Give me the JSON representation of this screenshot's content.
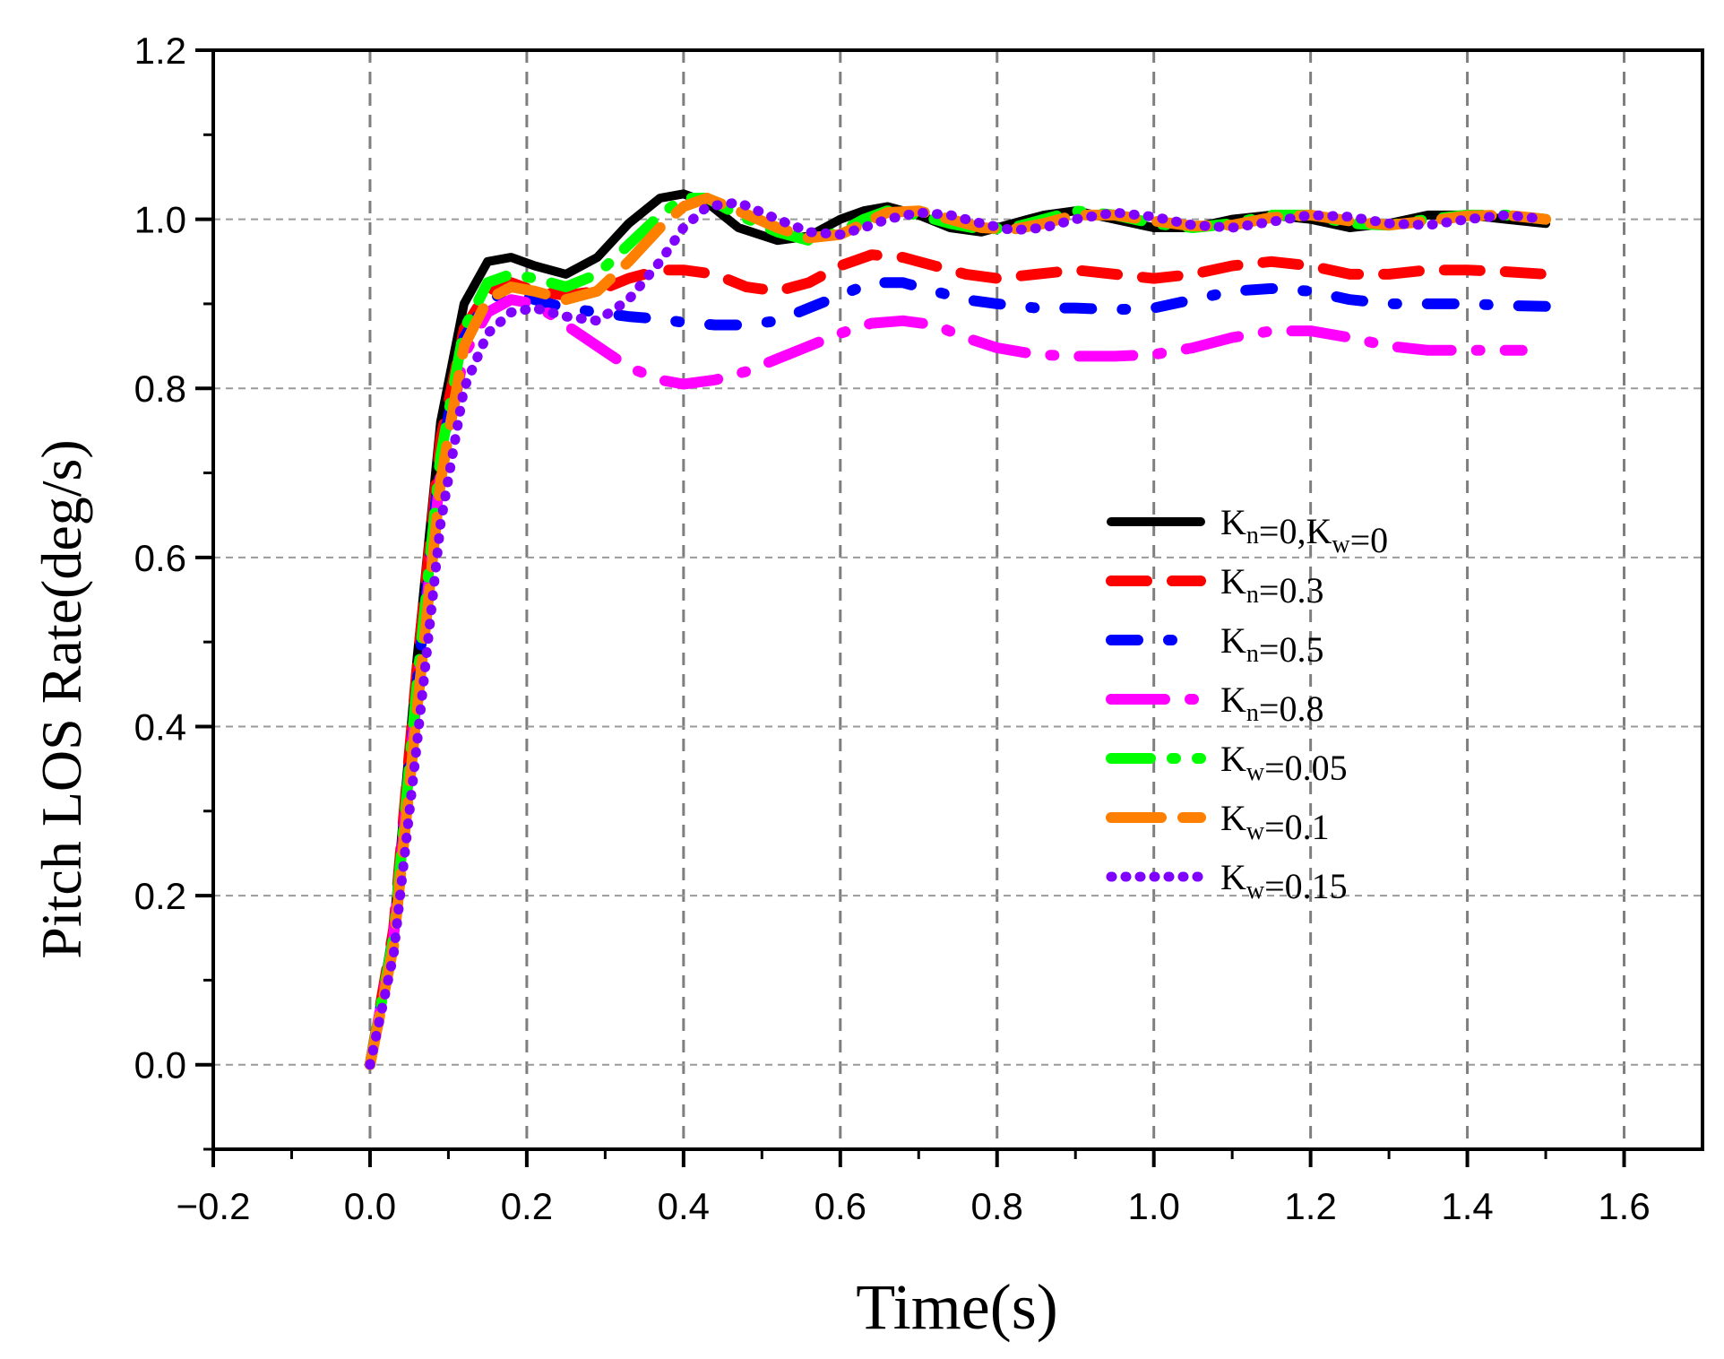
{
  "chart_data": {
    "type": "line",
    "title": "",
    "xlabel": "Time(s)",
    "ylabel": "Pitch LOS Rate(deg/s)",
    "xlim": [
      -0.2,
      1.7
    ],
    "ylim": [
      -0.1,
      1.2
    ],
    "xticks": [
      -0.2,
      0.0,
      0.2,
      0.4,
      0.6,
      0.8,
      1.0,
      1.2,
      1.4,
      1.6
    ],
    "yticks": [
      0.0,
      0.2,
      0.4,
      0.6,
      0.8,
      1.0,
      1.2
    ],
    "xtick_labels": [
      "−0.2",
      "0.0",
      "0.2",
      "0.4",
      "0.6",
      "0.8",
      "1.0",
      "1.2",
      "1.4",
      "1.6"
    ],
    "ytick_labels": [
      "0.0",
      "0.2",
      "0.4",
      "0.6",
      "0.8",
      "1.0",
      "1.2"
    ],
    "grid": true,
    "legend_position": "right-middle",
    "series": [
      {
        "name": "Kn=0,Kw=0",
        "legend": {
          "main": "K",
          "sub1": "n",
          "mid": "=0,K",
          "sub2": "w",
          "end": "=0"
        },
        "color": "#000000",
        "style": "solid",
        "x": [
          0,
          0.03,
          0.06,
          0.09,
          0.12,
          0.15,
          0.18,
          0.21,
          0.25,
          0.29,
          0.33,
          0.37,
          0.4,
          0.43,
          0.47,
          0.52,
          0.56,
          0.6,
          0.63,
          0.66,
          0.7,
          0.74,
          0.78,
          0.82,
          0.86,
          0.9,
          0.95,
          1.0,
          1.05,
          1.1,
          1.15,
          1.2,
          1.25,
          1.3,
          1.35,
          1.4,
          1.45,
          1.5
        ],
        "y": [
          0,
          0.16,
          0.48,
          0.76,
          0.9,
          0.95,
          0.955,
          0.945,
          0.935,
          0.955,
          0.995,
          1.025,
          1.03,
          1.02,
          0.99,
          0.975,
          0.98,
          1.0,
          1.01,
          1.015,
          1.005,
          0.99,
          0.985,
          0.995,
          1.005,
          1.01,
          1.0,
          0.99,
          0.99,
          1.0,
          1.005,
          1.0,
          0.99,
          0.995,
          1.005,
          1.005,
          1.0,
          0.995
        ]
      },
      {
        "name": "Kn=0.3",
        "legend": {
          "main": "K",
          "sub1": "n",
          "mid": "=0.3",
          "sub2": "",
          "end": ""
        },
        "color": "#ff0000",
        "style": "dash",
        "x": [
          0,
          0.03,
          0.06,
          0.09,
          0.12,
          0.15,
          0.18,
          0.21,
          0.25,
          0.29,
          0.33,
          0.37,
          0.4,
          0.44,
          0.48,
          0.52,
          0.56,
          0.6,
          0.64,
          0.68,
          0.72,
          0.76,
          0.8,
          0.85,
          0.9,
          0.95,
          1.0,
          1.05,
          1.1,
          1.15,
          1.2,
          1.25,
          1.3,
          1.35,
          1.4,
          1.45,
          1.5
        ],
        "y": [
          0,
          0.16,
          0.47,
          0.74,
          0.87,
          0.915,
          0.925,
          0.915,
          0.91,
          0.915,
          0.93,
          0.94,
          0.94,
          0.935,
          0.92,
          0.915,
          0.925,
          0.945,
          0.958,
          0.955,
          0.945,
          0.935,
          0.93,
          0.935,
          0.94,
          0.935,
          0.93,
          0.935,
          0.945,
          0.95,
          0.945,
          0.935,
          0.935,
          0.94,
          0.94,
          0.938,
          0.935
        ]
      },
      {
        "name": "Kn=0.5",
        "legend": {
          "main": "K",
          "sub1": "n",
          "mid": "=0.5",
          "sub2": "",
          "end": ""
        },
        "color": "#0000ff",
        "style": "dot-dash",
        "x": [
          0,
          0.03,
          0.06,
          0.09,
          0.12,
          0.15,
          0.18,
          0.21,
          0.25,
          0.29,
          0.33,
          0.37,
          0.4,
          0.44,
          0.48,
          0.52,
          0.56,
          0.6,
          0.64,
          0.68,
          0.72,
          0.76,
          0.8,
          0.85,
          0.9,
          0.95,
          1.0,
          1.05,
          1.1,
          1.15,
          1.2,
          1.25,
          1.3,
          1.35,
          1.4,
          1.45,
          1.5
        ],
        "y": [
          0,
          0.15,
          0.45,
          0.72,
          0.86,
          0.905,
          0.915,
          0.905,
          0.895,
          0.89,
          0.885,
          0.882,
          0.878,
          0.875,
          0.875,
          0.88,
          0.895,
          0.91,
          0.925,
          0.925,
          0.915,
          0.905,
          0.9,
          0.895,
          0.895,
          0.893,
          0.895,
          0.905,
          0.915,
          0.918,
          0.915,
          0.905,
          0.9,
          0.9,
          0.9,
          0.898,
          0.897
        ]
      },
      {
        "name": "Kn=0.8",
        "legend": {
          "main": "K",
          "sub1": "n",
          "mid": "=0.8",
          "sub2": "",
          "end": ""
        },
        "color": "#ff00ff",
        "style": "long-dash-dot",
        "x": [
          0,
          0.03,
          0.06,
          0.09,
          0.12,
          0.15,
          0.18,
          0.21,
          0.25,
          0.29,
          0.33,
          0.37,
          0.4,
          0.44,
          0.48,
          0.52,
          0.56,
          0.6,
          0.64,
          0.68,
          0.72,
          0.76,
          0.8,
          0.85,
          0.9,
          0.95,
          1.0,
          1.05,
          1.1,
          1.15,
          1.2,
          1.25,
          1.3,
          1.35,
          1.4,
          1.45,
          1.47
        ],
        "y": [
          0,
          0.15,
          0.44,
          0.7,
          0.84,
          0.89,
          0.905,
          0.9,
          0.875,
          0.85,
          0.825,
          0.81,
          0.805,
          0.81,
          0.82,
          0.835,
          0.85,
          0.865,
          0.877,
          0.88,
          0.875,
          0.86,
          0.848,
          0.84,
          0.838,
          0.838,
          0.84,
          0.848,
          0.86,
          0.868,
          0.868,
          0.86,
          0.85,
          0.845,
          0.845,
          0.845,
          0.845
        ]
      },
      {
        "name": "Kw=0.05",
        "legend": {
          "main": "K",
          "sub1": "w",
          "mid": "=0.05",
          "sub2": "",
          "end": ""
        },
        "color": "#00ff00",
        "style": "dash-dot",
        "x": [
          0,
          0.03,
          0.06,
          0.09,
          0.12,
          0.15,
          0.18,
          0.21,
          0.25,
          0.29,
          0.33,
          0.37,
          0.4,
          0.43,
          0.47,
          0.52,
          0.56,
          0.6,
          0.63,
          0.66,
          0.7,
          0.74,
          0.78,
          0.82,
          0.86,
          0.9,
          0.95,
          1.0,
          1.05,
          1.1,
          1.15,
          1.2,
          1.25,
          1.3,
          1.35,
          1.4,
          1.45,
          1.5
        ],
        "y": [
          0,
          0.15,
          0.45,
          0.72,
          0.87,
          0.925,
          0.935,
          0.93,
          0.92,
          0.935,
          0.97,
          1.005,
          1.025,
          1.025,
          1.005,
          0.985,
          0.975,
          0.985,
          1.0,
          1.01,
          1.005,
          0.995,
          0.988,
          0.99,
          1.0,
          1.01,
          1.005,
          0.995,
          0.99,
          0.995,
          1.005,
          1.005,
          0.995,
          0.993,
          1.0,
          1.005,
          1.005,
          1.0
        ]
      },
      {
        "name": "Kw=0.1",
        "legend": {
          "main": "K",
          "sub1": "w",
          "mid": "=0.1",
          "sub2": "",
          "end": ""
        },
        "color": "#ff8000",
        "style": "long-dash",
        "x": [
          0,
          0.03,
          0.06,
          0.09,
          0.12,
          0.15,
          0.18,
          0.21,
          0.25,
          0.29,
          0.33,
          0.37,
          0.4,
          0.43,
          0.47,
          0.52,
          0.56,
          0.6,
          0.63,
          0.66,
          0.7,
          0.74,
          0.78,
          0.82,
          0.86,
          0.9,
          0.95,
          1.0,
          1.05,
          1.1,
          1.15,
          1.2,
          1.25,
          1.3,
          1.35,
          1.4,
          1.45,
          1.5
        ],
        "y": [
          0,
          0.14,
          0.42,
          0.69,
          0.85,
          0.905,
          0.92,
          0.915,
          0.905,
          0.915,
          0.95,
          0.99,
          1.015,
          1.025,
          1.01,
          0.99,
          0.978,
          0.982,
          0.995,
          1.008,
          1.01,
          1.0,
          0.99,
          0.988,
          0.995,
          1.005,
          1.005,
          0.998,
          0.992,
          0.993,
          1.002,
          1.005,
          0.998,
          0.993,
          0.998,
          1.004,
          1.005,
          1.0
        ]
      },
      {
        "name": "Kw=0.15",
        "legend": {
          "main": "K",
          "sub1": "w",
          "mid": "=0.15",
          "sub2": "",
          "end": ""
        },
        "color": "#8000ff",
        "style": "dot",
        "x": [
          0,
          0.03,
          0.06,
          0.09,
          0.12,
          0.15,
          0.18,
          0.21,
          0.25,
          0.29,
          0.33,
          0.37,
          0.4,
          0.43,
          0.47,
          0.52,
          0.56,
          0.6,
          0.63,
          0.66,
          0.7,
          0.74,
          0.78,
          0.82,
          0.86,
          0.9,
          0.95,
          1.0,
          1.05,
          1.1,
          1.15,
          1.2,
          1.25,
          1.3,
          1.35,
          1.4,
          1.45,
          1.5
        ],
        "y": [
          0,
          0.13,
          0.38,
          0.64,
          0.8,
          0.865,
          0.89,
          0.895,
          0.885,
          0.88,
          0.905,
          0.95,
          0.99,
          1.015,
          1.02,
          1.0,
          0.985,
          0.982,
          0.99,
          1.0,
          1.008,
          1.005,
          0.995,
          0.987,
          0.99,
          1.0,
          1.008,
          1.003,
          0.993,
          0.99,
          0.997,
          1.005,
          1.003,
          0.995,
          0.993,
          1.0,
          1.005,
          1.0
        ]
      }
    ]
  }
}
